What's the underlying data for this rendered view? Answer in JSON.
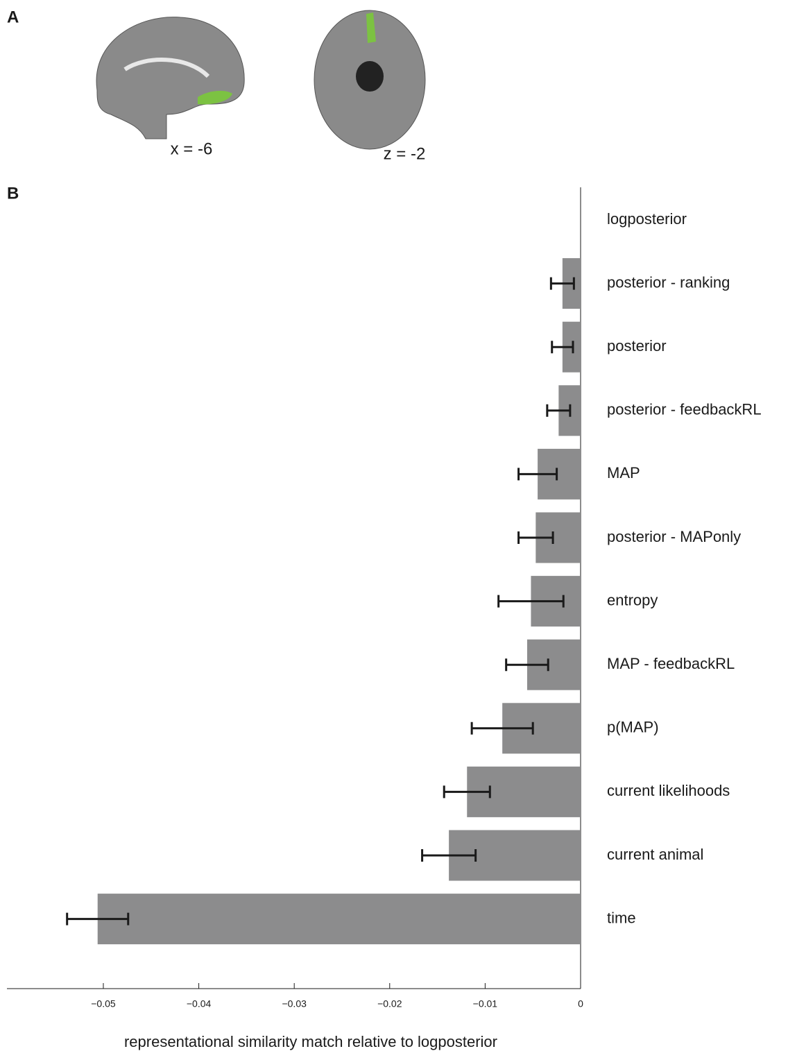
{
  "panel_labels": [
    "A",
    "B"
  ],
  "images": [
    {
      "label": "x = -6"
    },
    {
      "label": "z = -2"
    }
  ],
  "chart_data": {
    "type": "hbar",
    "xlabel": "representational similarity match relative to logposterior",
    "categories": [
      "logposterior",
      "posterior - ranking",
      "posterior",
      "posterior - feedbackRL",
      "MAP",
      "posterior - MAPonly",
      "entropy",
      "MAP - feedbackRL",
      "p(MAP)",
      "current likelihoods",
      "current animal",
      "time"
    ],
    "values": [
      0,
      -0.0019,
      -0.0019,
      -0.0023,
      -0.0045,
      -0.0047,
      -0.0052,
      -0.0056,
      -0.0082,
      -0.0119,
      -0.0138,
      -0.0506
    ],
    "errors": [
      0,
      0.0012,
      0.0011,
      0.0012,
      0.002,
      0.0018,
      0.0034,
      0.0022,
      0.0032,
      0.0024,
      0.0028,
      0.0032
    ],
    "color": "#8c8c8d",
    "error_color": "#1a1a1a",
    "xlim": [
      -0.0601,
      0
    ],
    "xticks": [
      {
        "value": -0.05,
        "label": "−0.05"
      },
      {
        "value": -0.04,
        "label": "−0.04"
      },
      {
        "value": -0.03,
        "label": "−0.03"
      },
      {
        "value": -0.02,
        "label": "−0.02"
      },
      {
        "value": -0.01,
        "label": "−0.01"
      },
      0
    ]
  }
}
